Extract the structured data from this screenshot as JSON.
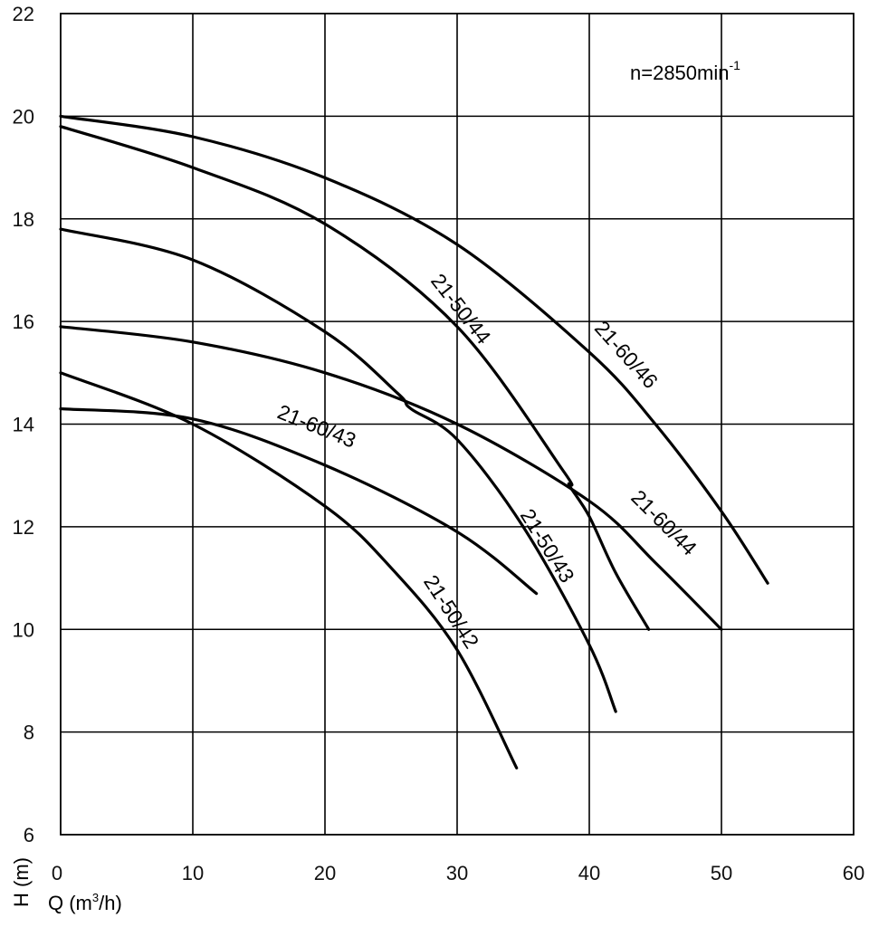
{
  "chart_data": {
    "type": "line",
    "title": "",
    "annotation": {
      "base": "n=2850min",
      "sup": "-1"
    },
    "xlabel": {
      "base": "Q (m",
      "sup": "3",
      "tail": "/h)"
    },
    "ylabel": "H (m)",
    "xlim": [
      0,
      60
    ],
    "ylim": [
      6,
      22
    ],
    "x_ticks": [
      "0",
      "10",
      "20",
      "30",
      "40",
      "50",
      "60"
    ],
    "y_ticks": [
      "6",
      "8",
      "10",
      "12",
      "14",
      "16",
      "18",
      "20",
      "22"
    ],
    "grid": true,
    "series": [
      {
        "name": "21-50/42",
        "points": [
          [
            0,
            15.0
          ],
          [
            10,
            14.0
          ],
          [
            20,
            12.4
          ],
          [
            25,
            11.2
          ],
          [
            30,
            9.6
          ],
          [
            34.5,
            7.3
          ]
        ]
      },
      {
        "name": "21-60/43",
        "points": [
          [
            0,
            14.3
          ],
          [
            10,
            14.1
          ],
          [
            20,
            13.2
          ],
          [
            30,
            11.9
          ],
          [
            36,
            10.7
          ]
        ]
      },
      {
        "name": "21-50/43",
        "points": [
          [
            0,
            17.8
          ],
          [
            10,
            17.2
          ],
          [
            20,
            15.8
          ],
          [
            25.5,
            14.6
          ],
          [
            26.5,
            14.3
          ],
          [
            30,
            13.7
          ],
          [
            35,
            12.0
          ],
          [
            40,
            9.7
          ],
          [
            42,
            8.4
          ]
        ]
      },
      {
        "name": "21-60/44",
        "points": [
          [
            0,
            15.9
          ],
          [
            10,
            15.6
          ],
          [
            20,
            15.0
          ],
          [
            30,
            14.0
          ],
          [
            40,
            12.5
          ],
          [
            45,
            11.3
          ],
          [
            50,
            10.0
          ]
        ]
      },
      {
        "name": "21-50/44",
        "points": [
          [
            0,
            19.8
          ],
          [
            10,
            19.0
          ],
          [
            20,
            17.9
          ],
          [
            30,
            15.9
          ],
          [
            38,
            13.1
          ],
          [
            38.5,
            12.8
          ],
          [
            40,
            12.2
          ],
          [
            42,
            11.1
          ],
          [
            44.5,
            10.0
          ]
        ]
      },
      {
        "name": "21-60/46",
        "points": [
          [
            0,
            20.0
          ],
          [
            10,
            19.6
          ],
          [
            20,
            18.8
          ],
          [
            30,
            17.5
          ],
          [
            40,
            15.4
          ],
          [
            45,
            14.0
          ],
          [
            50,
            12.3
          ],
          [
            53.5,
            10.9
          ]
        ]
      }
    ]
  }
}
